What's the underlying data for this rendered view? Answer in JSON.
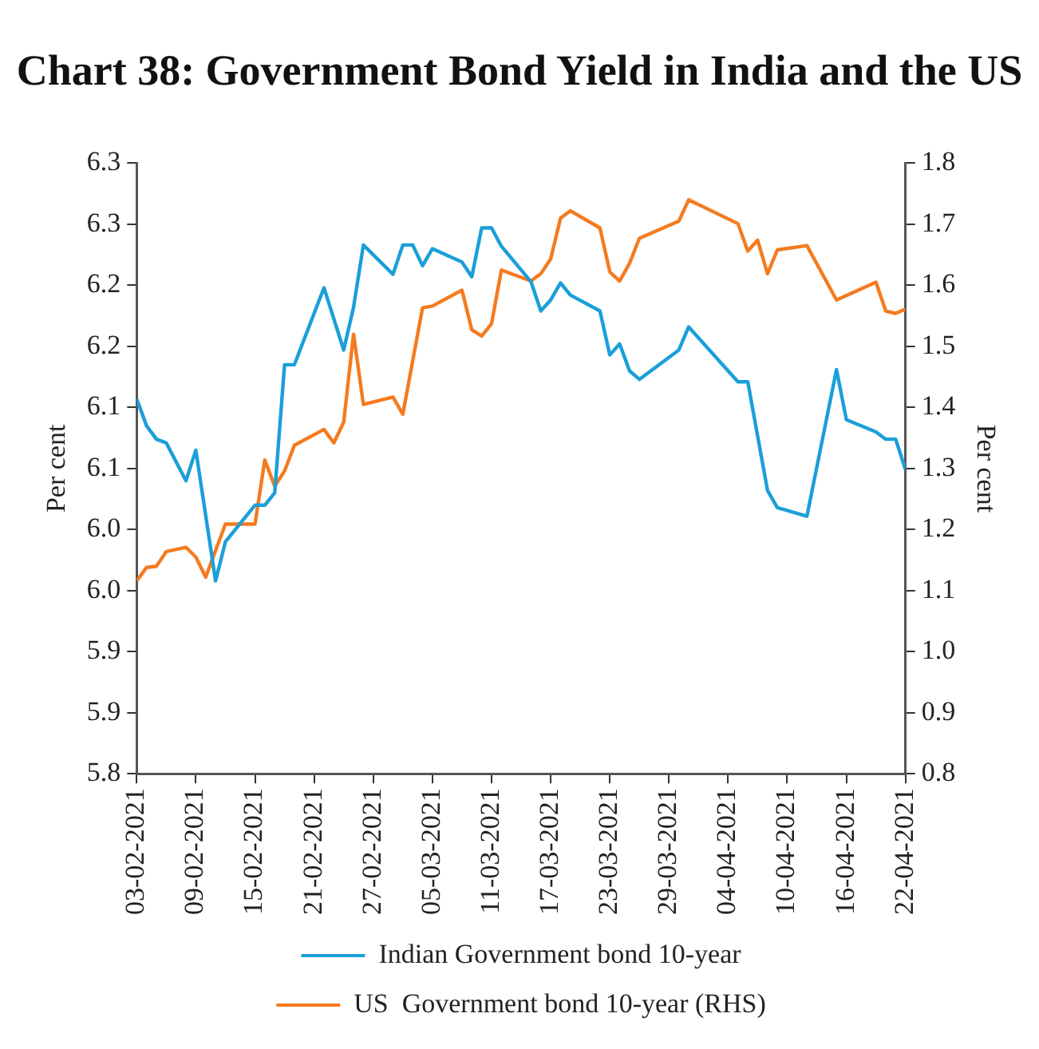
{
  "chart_data": {
    "type": "line",
    "title": "Chart 38: Government Bond Yield in India and the US",
    "ylabel": "Per cent",
    "y2label": "Per cent",
    "xlim": [
      "2021-02-03",
      "2021-04-22"
    ],
    "xticks": [
      {
        "value": "2021-02-03",
        "label": "03-02-2021"
      },
      {
        "value": "2021-02-09",
        "label": "09-02-2021"
      },
      {
        "value": "2021-02-15",
        "label": "15-02-2021"
      },
      {
        "value": "2021-02-21",
        "label": "21-02-2021"
      },
      {
        "value": "2021-02-27",
        "label": "27-02-2021"
      },
      {
        "value": "2021-03-05",
        "label": "05-03-2021"
      },
      {
        "value": "2021-03-11",
        "label": "11-03-2021"
      },
      {
        "value": "2021-03-17",
        "label": "17-03-2021"
      },
      {
        "value": "2021-03-23",
        "label": "23-03-2021"
      },
      {
        "value": "2021-03-29",
        "label": "29-03-2021"
      },
      {
        "value": "2021-04-04",
        "label": "04-04-2021"
      },
      {
        "value": "2021-04-10",
        "label": "10-04-2021"
      },
      {
        "value": "2021-04-16",
        "label": "16-04-2021"
      },
      {
        "value": "2021-04-22",
        "label": "22-04-2021"
      }
    ],
    "ylim": [
      5.8,
      6.3
    ],
    "yticks": [
      5.8,
      {
        "value": 5.85,
        "label": "5.9"
      },
      5.9,
      {
        "value": 5.95,
        "label": "6.0"
      },
      {
        "value": 6,
        "label": "6.0"
      },
      {
        "value": 6.05,
        "label": "6.1"
      },
      6.1,
      {
        "value": 6.15,
        "label": "6.2"
      },
      6.2,
      {
        "value": 6.25,
        "label": "6.3"
      },
      6.3
    ],
    "y2lim": [
      0.8,
      1.8
    ],
    "y2ticks": [
      0.8,
      0.9,
      {
        "value": 1,
        "label": "1.0"
      },
      1.1,
      1.2,
      1.3,
      1.4,
      1.5,
      1.6,
      1.7,
      1.8
    ],
    "grid": false,
    "legend": "bottom",
    "marker": "none",
    "line_style": "solid",
    "series": [
      {
        "name": "Indian Government bond 10-year",
        "color": "#1a9fd9",
        "x": [
          "2021-02-03",
          "2021-02-04",
          "2021-02-05",
          "2021-02-06",
          "2021-02-08",
          "2021-02-09",
          "2021-02-11",
          "2021-02-12",
          "2021-02-15",
          "2021-02-16",
          "2021-02-17",
          "2021-02-18",
          "2021-02-19",
          "2021-02-22",
          "2021-02-24",
          "2021-02-25",
          "2021-02-26",
          "2021-03-01",
          "2021-03-02",
          "2021-03-03",
          "2021-03-04",
          "2021-03-05",
          "2021-03-08",
          "2021-03-09",
          "2021-03-10",
          "2021-03-11",
          "2021-03-12",
          "2021-03-15",
          "2021-03-16",
          "2021-03-17",
          "2021-03-18",
          "2021-03-19",
          "2021-03-22",
          "2021-03-23",
          "2021-03-24",
          "2021-03-25",
          "2021-03-26",
          "2021-03-30",
          "2021-03-31",
          "2021-04-05",
          "2021-04-06",
          "2021-04-08",
          "2021-04-09",
          "2021-04-12",
          "2021-04-15",
          "2021-04-16",
          "2021-04-19",
          "2021-04-20",
          "2021-04-21",
          "2021-04-22"
        ],
        "values": [
          6.107,
          6.085,
          6.074,
          6.071,
          6.04,
          6.065,
          5.958,
          5.99,
          6.02,
          6.02,
          6.03,
          6.135,
          6.135,
          6.198,
          6.147,
          6.182,
          6.233,
          6.209,
          6.233,
          6.233,
          6.216,
          6.23,
          6.219,
          6.207,
          6.247,
          6.247,
          6.232,
          6.203,
          6.179,
          6.188,
          6.202,
          6.192,
          6.179,
          6.143,
          6.152,
          6.13,
          6.123,
          6.147,
          6.166,
          6.121,
          6.121,
          6.032,
          6.018,
          6.011,
          6.131,
          6.09,
          6.08,
          6.074,
          6.074,
          6.049
        ]
      },
      {
        "name": "US  Government bond 10-year (RHS)",
        "color": "#f47b20",
        "axis": "y2",
        "x": [
          "2021-02-03",
          "2021-02-04",
          "2021-02-05",
          "2021-02-06",
          "2021-02-08",
          "2021-02-09",
          "2021-02-10",
          "2021-02-12",
          "2021-02-15",
          "2021-02-16",
          "2021-02-17",
          "2021-02-18",
          "2021-02-19",
          "2021-02-22",
          "2021-02-23",
          "2021-02-24",
          "2021-02-25",
          "2021-02-26",
          "2021-03-01",
          "2021-03-02",
          "2021-03-04",
          "2021-03-05",
          "2021-03-08",
          "2021-03-09",
          "2021-03-10",
          "2021-03-11",
          "2021-03-12",
          "2021-03-15",
          "2021-03-16",
          "2021-03-17",
          "2021-03-18",
          "2021-03-19",
          "2021-03-22",
          "2021-03-23",
          "2021-03-24",
          "2021-03-25",
          "2021-03-26",
          "2021-03-30",
          "2021-03-31",
          "2021-04-05",
          "2021-04-06",
          "2021-04-07",
          "2021-04-08",
          "2021-04-09",
          "2021-04-12",
          "2021-04-15",
          "2021-04-19",
          "2021-04-20",
          "2021-04-21",
          "2021-04-22"
        ],
        "values": [
          1.116,
          1.138,
          1.14,
          1.164,
          1.171,
          1.155,
          1.122,
          1.209,
          1.209,
          1.314,
          1.271,
          1.296,
          1.338,
          1.364,
          1.342,
          1.376,
          1.52,
          1.405,
          1.417,
          1.389,
          1.563,
          1.566,
          1.592,
          1.527,
          1.517,
          1.537,
          1.625,
          1.607,
          1.619,
          1.643,
          1.71,
          1.722,
          1.694,
          1.622,
          1.607,
          1.636,
          1.677,
          1.705,
          1.74,
          1.701,
          1.656,
          1.674,
          1.619,
          1.658,
          1.665,
          1.576,
          1.605,
          1.558,
          1.554,
          1.561
        ]
      }
    ]
  }
}
